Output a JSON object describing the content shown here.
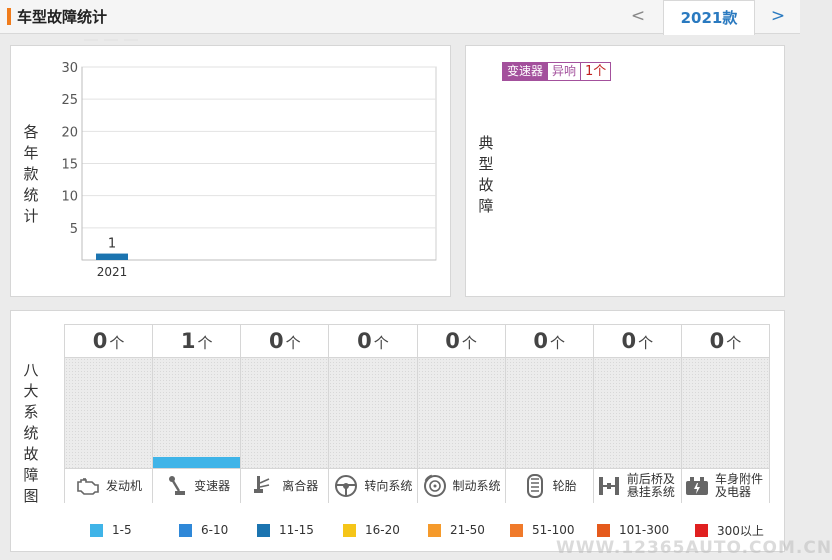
{
  "header": {
    "title": "车型故障统计",
    "prev_label": "<",
    "year_tab": "2021款",
    "next_label": ">"
  },
  "yearly": {
    "vertical_label": "各年款统计"
  },
  "typical": {
    "vertical_label": "典型故障",
    "tag": {
      "component": "变速器",
      "fault": "异响",
      "count": "1个"
    }
  },
  "systems": {
    "vertical_label": "八大系统故障图",
    "unit": "个",
    "items": [
      {
        "name": "发动机",
        "count": "0",
        "icon": "engine-icon"
      },
      {
        "name": "变速器",
        "count": "1",
        "icon": "gear-shifter-icon"
      },
      {
        "name": "离合器",
        "count": "0",
        "icon": "clutch-pedal-icon"
      },
      {
        "name": "转向系统",
        "count": "0",
        "icon": "steering-wheel-icon"
      },
      {
        "name": "制动系统",
        "count": "0",
        "icon": "brake-disc-icon"
      },
      {
        "name": "轮胎",
        "count": "0",
        "icon": "tire-icon"
      },
      {
        "name": "前后桥及悬挂系统",
        "count": "0",
        "icon": "axle-suspension-icon"
      },
      {
        "name": "车身附件及电器",
        "count": "0",
        "icon": "car-body-electric-icon"
      }
    ]
  },
  "legend": [
    {
      "label": "1-5",
      "color": "#3fb4e8"
    },
    {
      "label": "6-10",
      "color": "#2f88d8"
    },
    {
      "label": "11-15",
      "color": "#1b74b0"
    },
    {
      "label": "16-20",
      "color": "#f5c518"
    },
    {
      "label": "21-50",
      "color": "#f59a2b"
    },
    {
      "label": "51-100",
      "color": "#f07a2a"
    },
    {
      "label": "101-300",
      "color": "#e55a1c"
    },
    {
      "label": "300以上",
      "color": "#e02020"
    }
  ],
  "watermark": "WWW.12365AUTO.COM.CN",
  "chart_data": {
    "type": "bar",
    "title": "",
    "xlabel": "",
    "ylabel": "各年款统计",
    "categories": [
      "2021"
    ],
    "values": [
      1
    ],
    "ylim": [
      0,
      30
    ],
    "yticks": [
      5,
      10,
      15,
      20,
      25,
      30
    ],
    "bar_color": "#1b74b0",
    "grid": true
  }
}
